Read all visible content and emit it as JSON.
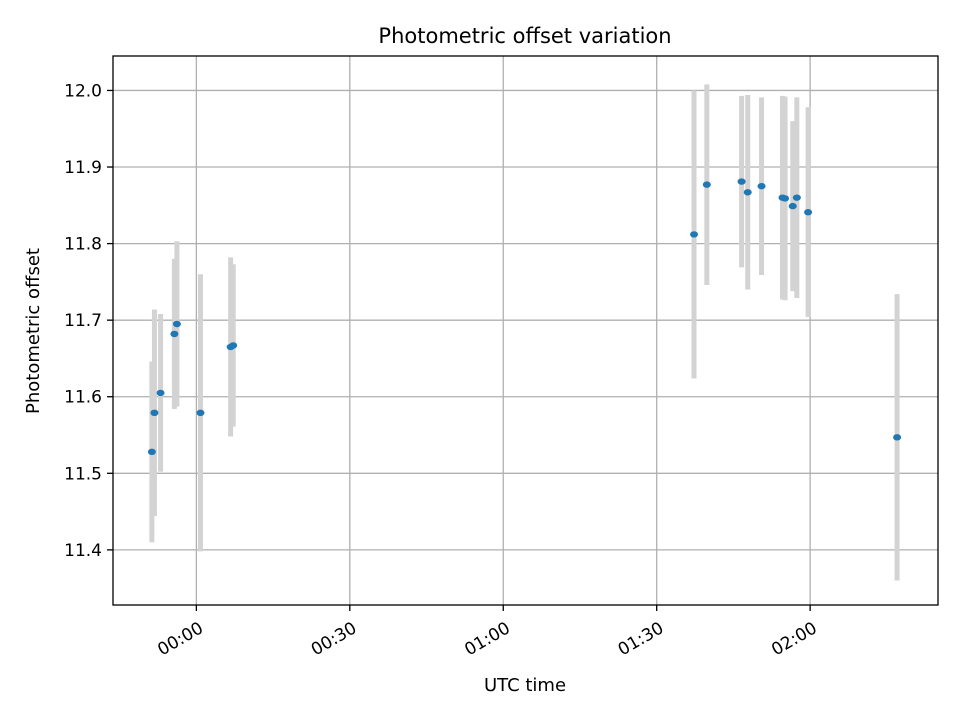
{
  "chart_data": {
    "type": "scatter",
    "title": "Photometric offset variation",
    "xlabel": "UTC time",
    "ylabel": "Photometric offset",
    "x_unit": "minutes after 00:00 UTC",
    "xlim": [
      -16.3,
      145.0
    ],
    "ylim": [
      11.328,
      12.045
    ],
    "grid": true,
    "x_ticks": [
      {
        "value": 0,
        "label": "00:00"
      },
      {
        "value": 30,
        "label": "00:30"
      },
      {
        "value": 60,
        "label": "01:00"
      },
      {
        "value": 90,
        "label": "01:30"
      },
      {
        "value": 120,
        "label": "02:00"
      }
    ],
    "y_ticks": [
      {
        "value": 11.4,
        "label": "11.4"
      },
      {
        "value": 11.5,
        "label": "11.5"
      },
      {
        "value": 11.6,
        "label": "11.6"
      },
      {
        "value": 11.7,
        "label": "11.7"
      },
      {
        "value": 11.8,
        "label": "11.8"
      },
      {
        "value": 11.9,
        "label": "11.9"
      },
      {
        "value": 12.0,
        "label": "12.0"
      }
    ],
    "colors": {
      "points": "#1f77b4",
      "error_bars": "#d3d3d3",
      "grid": "#b0b0b0"
    },
    "points": [
      {
        "x": -8.7,
        "y": 11.528,
        "err": 0.118
      },
      {
        "x": -8.2,
        "y": 11.579,
        "err": 0.135
      },
      {
        "x": -7.0,
        "y": 11.605,
        "err": 0.103
      },
      {
        "x": -4.3,
        "y": 11.682,
        "err": 0.098
      },
      {
        "x": -3.8,
        "y": 11.695,
        "err": 0.108
      },
      {
        "x": 0.8,
        "y": 11.579,
        "err": 0.181
      },
      {
        "x": 6.7,
        "y": 11.665,
        "err": 0.117
      },
      {
        "x": 7.2,
        "y": 11.667,
        "err": 0.106
      },
      {
        "x": 97.3,
        "y": 11.812,
        "err": 0.188
      },
      {
        "x": 99.8,
        "y": 11.877,
        "err": 0.131
      },
      {
        "x": 106.6,
        "y": 11.881,
        "err": 0.112
      },
      {
        "x": 107.8,
        "y": 11.867,
        "err": 0.127
      },
      {
        "x": 110.5,
        "y": 11.875,
        "err": 0.116
      },
      {
        "x": 114.6,
        "y": 11.86,
        "err": 0.133
      },
      {
        "x": 115.1,
        "y": 11.859,
        "err": 0.133
      },
      {
        "x": 116.6,
        "y": 11.849,
        "err": 0.111
      },
      {
        "x": 117.4,
        "y": 11.86,
        "err": 0.131
      },
      {
        "x": 119.6,
        "y": 11.841,
        "err": 0.137
      },
      {
        "x": 137.0,
        "y": 11.547,
        "err": 0.187
      }
    ]
  }
}
